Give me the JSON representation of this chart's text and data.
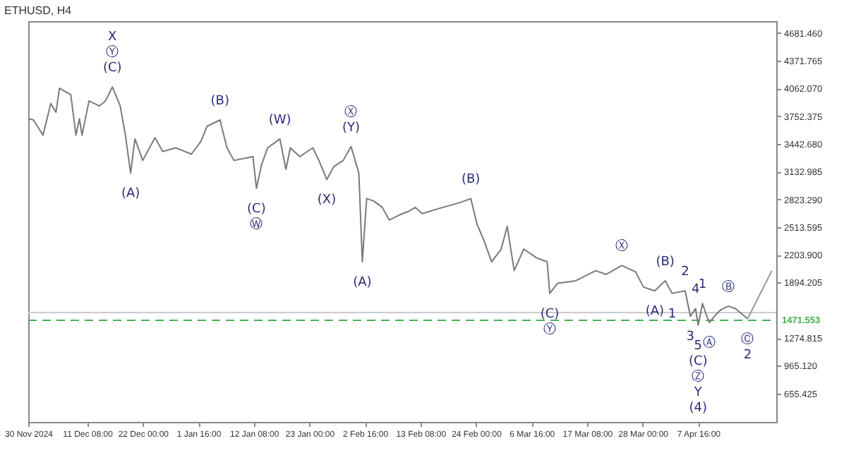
{
  "chart_data": {
    "type": "line",
    "title": "ETHUSD, H4",
    "xlim": [
      "2024-11-30T00:00",
      "2025-04-22T16:00"
    ],
    "ylim": [
      338,
      4813
    ],
    "xticks": [
      {
        "value": "2024-11-30T00:00",
        "label": "30 Nov 2024"
      },
      {
        "value": "2024-12-11T08:00",
        "label": "11 Dec 08:00"
      },
      {
        "value": "2024-12-22T00:00",
        "label": "22 Dec 00:00"
      },
      {
        "value": "2025-01-01T16:00",
        "label": "1 Jan 16:00"
      },
      {
        "value": "2025-01-12T08:00",
        "label": "12 Jan 08:00"
      },
      {
        "value": "2025-01-23T00:00",
        "label": "23 Jan 00:00"
      },
      {
        "value": "2025-02-02T16:00",
        "label": "2 Feb 16:00"
      },
      {
        "value": "2025-02-13T08:00",
        "label": "13 Feb 08:00"
      },
      {
        "value": "2025-02-24T00:00",
        "label": "24 Feb 00:00"
      },
      {
        "value": "2025-03-06T16:00",
        "label": "6 Mar 16:00"
      },
      {
        "value": "2025-03-17T08:00",
        "label": "17 Mar 08:00"
      },
      {
        "value": "2025-03-28T00:00",
        "label": "28 Mar 00:00"
      },
      {
        "value": "2025-04-07T16:00",
        "label": "7 Apr 16:00"
      }
    ],
    "yticks": [
      {
        "value": 4681.46,
        "label": "4681.460"
      },
      {
        "value": 4371.765,
        "label": "4371.765"
      },
      {
        "value": 4062.07,
        "label": "4062.070"
      },
      {
        "value": 3752.375,
        "label": "3752.375"
      },
      {
        "value": 3442.68,
        "label": "3442.680"
      },
      {
        "value": 3132.985,
        "label": "3132.985"
      },
      {
        "value": 2823.29,
        "label": "2823.290"
      },
      {
        "value": 2513.595,
        "label": "2513.595"
      },
      {
        "value": 2203.9,
        "label": "2203.900"
      },
      {
        "value": 1894.205,
        "label": "1894.205"
      },
      {
        "value": 1274.815,
        "label": "1274.815"
      },
      {
        "value": 965.12,
        "label": "965.120"
      },
      {
        "value": 655.425,
        "label": "655.425"
      }
    ],
    "series": [
      {
        "color": "#7a7a7a",
        "x": [
          "2024-11-30T00:00",
          "2024-12-01T00:00",
          "2024-12-02T20:00",
          "2024-12-04T08:00",
          "2024-12-05T08:00",
          "2024-12-06T00:00",
          "2024-12-08T04:00",
          "2024-12-09T04:00",
          "2024-12-09T20:00",
          "2024-12-10T08:00",
          "2024-12-11T16:00",
          "2024-12-13T16:00",
          "2024-12-14T20:00",
          "2024-12-16T04:00",
          "2024-12-17T16:00",
          "2024-12-18T16:00",
          "2024-12-19T16:00",
          "2024-12-20T12:00",
          "2024-12-22T00:00",
          "2024-12-24T08:00",
          "2024-12-25T20:00",
          "2024-12-28T08:00",
          "2024-12-31T08:00",
          "2025-01-02T04:00",
          "2025-01-03T08:00",
          "2025-01-05T20:00",
          "2025-01-07T04:00",
          "2025-01-08T12:00",
          "2025-01-11T00:00",
          "2025-01-12T04:00",
          "2025-01-12T20:00",
          "2025-01-13T20:00",
          "2025-01-15T00:00",
          "2025-01-17T08:00",
          "2025-01-18T12:00",
          "2025-01-19T08:00",
          "2025-01-21T04:00",
          "2025-01-23T16:00",
          "2025-01-24T20:00",
          "2025-01-26T08:00",
          "2025-01-27T16:00",
          "2025-01-29T12:00",
          "2025-01-31T00:00",
          "2025-02-01T12:00",
          "2025-02-02T04:00",
          "2025-02-03T00:00",
          "2025-02-04T08:00",
          "2025-02-06T00:00",
          "2025-02-07T08:00",
          "2025-02-09T08:00",
          "2025-02-11T04:00",
          "2025-02-12T08:00",
          "2025-02-13T16:00",
          "2025-02-16T20:00",
          "2025-02-21T04:00",
          "2025-02-23T00:00",
          "2025-02-24T04:00",
          "2025-02-25T12:00",
          "2025-02-27T00:00",
          "2025-02-28T20:00",
          "2025-03-02T00:00",
          "2025-03-03T08:00",
          "2025-03-05T04:00",
          "2025-03-07T16:00",
          "2025-03-09T16:00",
          "2025-03-10T04:00",
          "2025-03-11T16:00",
          "2025-03-15T04:00",
          "2025-03-19T00:00",
          "2025-03-21T00:00",
          "2025-03-24T00:00",
          "2025-03-26T16:00",
          "2025-03-28T04:00",
          "2025-03-30T08:00",
          "2025-04-01T08:00",
          "2025-04-02T16:00",
          "2025-04-05T04:00",
          "2025-04-06T04:00",
          "2025-04-07T04:00",
          "2025-04-07T16:00",
          "2025-04-08T12:00",
          "2025-04-09T08:00",
          "2025-04-09T20:00",
          "2025-04-11T00:00",
          "2025-04-12T00:00",
          "2025-04-13T12:00",
          "2025-04-14T20:00",
          "2025-04-17T04:00"
        ],
        "values": [
          3724,
          3710,
          3540,
          3894,
          3795,
          4064,
          3993,
          3540,
          3724,
          3540,
          3922,
          3866,
          3922,
          4078,
          3866,
          3540,
          3116,
          3498,
          3258,
          3512,
          3357,
          3399,
          3328,
          3470,
          3639,
          3710,
          3399,
          3258,
          3286,
          3300,
          2946,
          3215,
          3399,
          3498,
          3159,
          3399,
          3300,
          3399,
          3258,
          3045,
          3187,
          3258,
          3413,
          3116,
          2126,
          2833,
          2805,
          2734,
          2593,
          2650,
          2692,
          2734,
          2664,
          2720,
          2791,
          2833,
          2550,
          2367,
          2126,
          2268,
          2522,
          2027,
          2268,
          2169,
          2126,
          1773,
          1886,
          1914,
          2027,
          1985,
          2084,
          2013,
          1844,
          1801,
          1914,
          1773,
          1801,
          1518,
          1603,
          1419,
          1660,
          1518,
          1448,
          1532,
          1589,
          1631,
          1603,
          1490
        ]
      },
      {
        "color": "#9a9a9a",
        "x": [
          "2025-04-17T04:00",
          "2025-04-21T20:00"
        ],
        "values": [
          1490,
          2027
        ]
      }
    ],
    "ref_lines": [
      {
        "axis": "y",
        "value": 1471.553,
        "label": "1471.553",
        "color": "#4caf50",
        "line_style": "dashed"
      },
      {
        "axis": "y",
        "value": 1560,
        "color": "#cccccc",
        "line_style": "solid"
      }
    ],
    "annotations": [
      {
        "text": "(C)",
        "x": "2024-12-16T04:00",
        "y": 4078
      },
      {
        "text": "Ⓨ",
        "x": "2024-12-16T04:00",
        "y": 4078
      },
      "X",
      {
        "text": "(A)",
        "x": "2024-12-19T16:00",
        "y": 3116
      },
      {
        "text": "(B)",
        "x": "2025-01-05T20:00",
        "y": 3710
      },
      {
        "text": "(W)",
        "x": "2025-01-17T08:00",
        "y": 3498
      },
      {
        "text": "(C)",
        "x": "2025-01-12T20:00",
        "y": 2946
      },
      {
        "text": "Ⓦ",
        "x": "2025-01-12T20:00",
        "y": 2946
      },
      {
        "text": "(Y)",
        "x": "2025-01-31T00:00",
        "y": 3413
      },
      {
        "text": "Ⓧ",
        "x": "2025-01-31T00:00",
        "y": 3413
      },
      {
        "text": "(X)",
        "x": "2025-01-26T08:00",
        "y": 3045
      },
      {
        "text": "(A)",
        "x": "2025-02-02T04:00",
        "y": 2126
      },
      {
        "text": "(B)",
        "x": "2025-02-23T00:00",
        "y": 2833
      },
      {
        "text": "Ⓧ",
        "x": "2025-03-24T00:00",
        "y": 2084
      },
      {
        "text": "(C)",
        "x": "2025-03-10T04:00",
        "y": 1773
      },
      {
        "text": "Ⓨ",
        "x": "2025-03-10T04:00",
        "y": 1773
      },
      {
        "text": "(B)",
        "x": "2025-04-01T08:00",
        "y": 1914
      },
      {
        "text": "(A)",
        "x": "2025-03-30T08:00",
        "y": 1801
      },
      {
        "text": "2",
        "x": "2025-04-05T04:00",
        "y": 1801
      },
      {
        "text": "1",
        "x": "2025-04-02T16:00",
        "y": 1773
      },
      {
        "text": "4",
        "x": "2025-04-07T04:00",
        "y": 1603
      },
      {
        "text": "1",
        "x": "2025-04-08T12:00",
        "y": 1660
      },
      {
        "text": "3",
        "x": "2025-04-06T04:00",
        "y": 1518
      },
      {
        "text": "5",
        "x": "2025-04-07T16:00",
        "y": 1419
      },
      {
        "text": "Ⓐ",
        "x": "2025-04-09T20:00",
        "y": 1448
      },
      {
        "text": "(C)",
        "x": "2025-04-07T16:00",
        "y": 1419
      },
      "Ⓩ",
      "Y",
      "(4)",
      {
        "text": "Ⓑ",
        "x": "2025-04-13T12:00",
        "y": 1631
      },
      {
        "text": "Ⓒ",
        "x": "2025-04-17T04:00",
        "y": 1490
      },
      {
        "text": "2",
        "x": "2025-04-17T04:00",
        "y": 1490
      }
    ]
  }
}
